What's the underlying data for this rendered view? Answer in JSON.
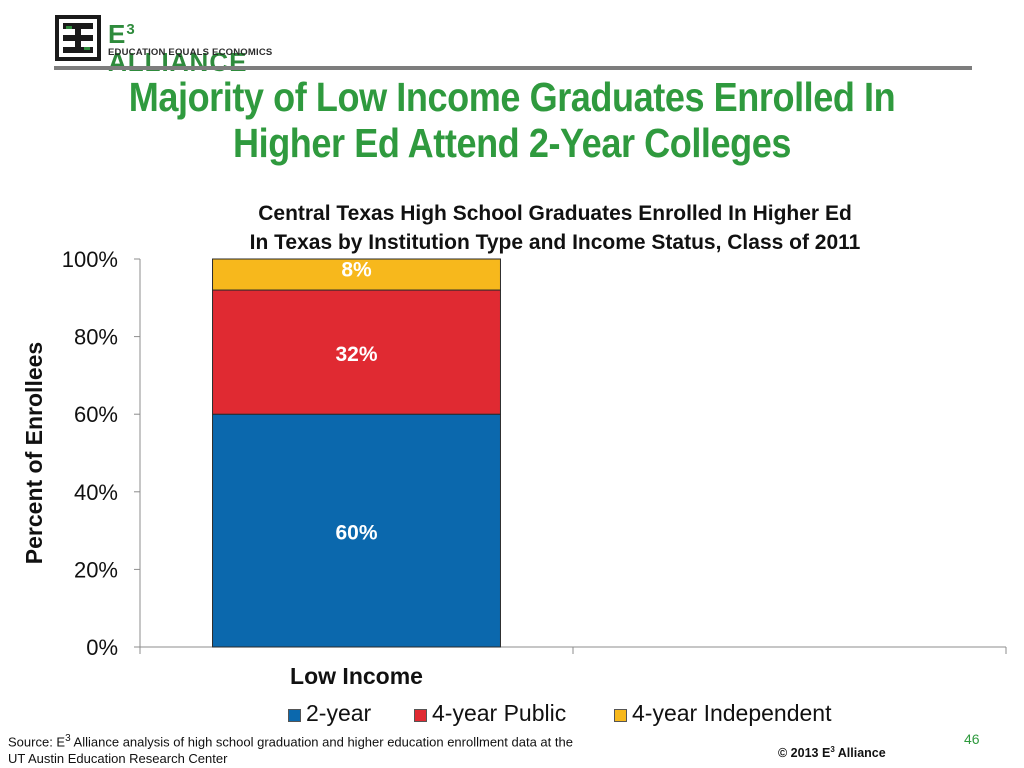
{
  "logo": {
    "name": "E",
    "name_sup": "3",
    "name_rest": " ALLIANCE",
    "tagline": "EDUCATION EQUALS ECONOMICS"
  },
  "slide_title": "Majority of Low Income Graduates Enrolled In Higher Ed Attend 2-Year Colleges",
  "chart_data": {
    "type": "bar",
    "stacked": true,
    "title": "Central Texas High School Graduates Enrolled In Higher Ed In Texas by Institution Type and Income Status, Class of 2011",
    "title_lines": [
      "Central Texas High School Graduates Enrolled In Higher Ed",
      "In Texas by Institution Type and Income Status, Class of 2011"
    ],
    "categories": [
      "Low Income",
      ""
    ],
    "series": [
      {
        "name": "2-year",
        "values": [
          60,
          null
        ],
        "label": "60%",
        "color": "#0b68ad"
      },
      {
        "name": "4-year Public",
        "values": [
          32,
          null
        ],
        "label": "32%",
        "color": "#e02a32"
      },
      {
        "name": "4-year Independent",
        "values": [
          8,
          null
        ],
        "label": "8%",
        "color": "#f7b81c"
      }
    ],
    "xlabel": "",
    "ylabel": "Percent of Enrollees",
    "ylim": [
      0,
      100
    ],
    "yticks": [
      "0%",
      "20%",
      "40%",
      "60%",
      "80%",
      "100%"
    ],
    "grid": false,
    "legend_position": "bottom"
  },
  "footer": {
    "source_prefix": "Source: E",
    "source_sup": "3",
    "source_rest": " Alliance analysis of high school graduation and higher education enrollment data at the UT Austin Education Research Center",
    "copyright_prefix": "© 2013 E",
    "copyright_sup": "3",
    "copyright_rest": " Alliance",
    "page_number": "46"
  }
}
